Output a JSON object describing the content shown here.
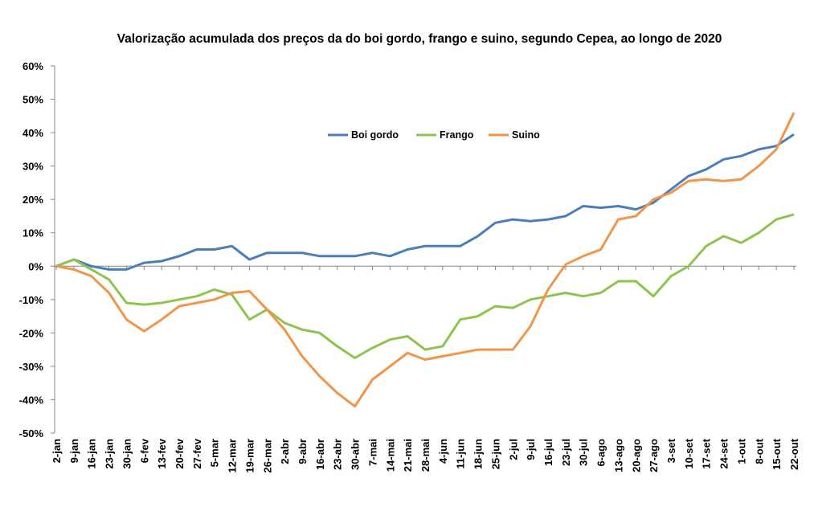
{
  "chart_data": {
    "type": "line",
    "title": "Valorização acumulada dos preços da do boi gordo, frango e suino, segundo  Cepea, ao longo de 2020",
    "xlabel": "",
    "ylabel": "",
    "ylim": [
      -50,
      60
    ],
    "yticks": [
      "60%",
      "50%",
      "40%",
      "30%",
      "20%",
      "10%",
      "0%",
      "-10%",
      "-20%",
      "-30%",
      "-40%",
      "-50%"
    ],
    "ytick_values": [
      60,
      50,
      40,
      30,
      20,
      10,
      0,
      -10,
      -20,
      -30,
      -40,
      -50
    ],
    "grid": false,
    "legend_position": "top-center",
    "categories": [
      "2-jan",
      "9-jan",
      "16-jan",
      "23-jan",
      "30-jan",
      "6-fev",
      "13-fev",
      "20-fev",
      "27-fev",
      "5-mar",
      "12-mar",
      "19-mar",
      "26-mar",
      "2-abr",
      "9-abr",
      "16-abr",
      "23-abr",
      "30-abr",
      "7-mai",
      "14-mai",
      "21-mai",
      "28-mai",
      "4-jun",
      "11-jun",
      "18-jun",
      "25-jun",
      "2-jul",
      "9-jul",
      "16-jul",
      "23-jul",
      "30-jul",
      "6-ago",
      "13-ago",
      "20-ago",
      "27-ago",
      "3-set",
      "10-set",
      "17-set",
      "24-set",
      "1-out",
      "8-out",
      "15-out",
      "22-out"
    ],
    "series": [
      {
        "name": "Boi gordo",
        "color": "#4a7ebb",
        "values": [
          0,
          2,
          0,
          -1,
          -1,
          1,
          1.5,
          3,
          5,
          5,
          6,
          2,
          4,
          4,
          4,
          3,
          3,
          3,
          4,
          3,
          5,
          6,
          6,
          6,
          9,
          13,
          14,
          13.5,
          14,
          15,
          18,
          17.5,
          18,
          17,
          19,
          23,
          27,
          29,
          32,
          33,
          35,
          36,
          39.5
        ]
      },
      {
        "name": "Frango",
        "color": "#8ec44e",
        "values": [
          0,
          2,
          -1,
          -4,
          -11,
          -11.5,
          -11,
          -10,
          -9,
          -7,
          -8.5,
          -16,
          -13,
          -17,
          -19,
          -20,
          -24,
          -27.5,
          -24.5,
          -22,
          -21,
          -25,
          -24,
          -16,
          -15,
          -12,
          -12.5,
          -10,
          -9,
          -8,
          -9,
          -8,
          -4.5,
          -4.5,
          -9,
          -3,
          0,
          6,
          9,
          7,
          10,
          14,
          15.5
        ]
      },
      {
        "name": "Suino",
        "color": "#f0954a",
        "values": [
          0,
          -1,
          -3,
          -8,
          -16,
          -19.5,
          -16,
          -12,
          -11,
          -10,
          -8,
          -7.5,
          -13,
          -19,
          -27,
          -33,
          -38,
          -42,
          -34,
          -30,
          -26,
          -28,
          -27,
          -26,
          -25,
          -25,
          -25,
          -18,
          -7,
          0.5,
          3,
          5,
          14,
          15,
          20,
          22,
          25.5,
          26,
          25.5,
          26,
          30,
          35,
          46
        ]
      }
    ]
  }
}
